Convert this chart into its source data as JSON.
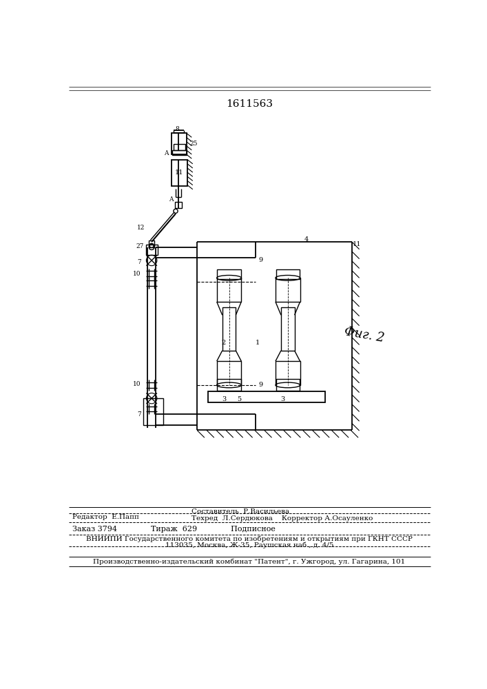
{
  "patent_number": "1611563",
  "fig_label": "Фиг. 2",
  "editor_line": "Редактор  Е.Папп",
  "compiler_line": "Составитель  Р.Васильева",
  "techred_line": "Техред  Л.Сердюкова    Корректор А.Осауленко",
  "order_line": "Заказ 3794              Тираж  629              Подписное",
  "vniip_line": "ВНИИПИ Государственного комитета по изобретениям и открытиям при ГКНТ СССР",
  "address_line": "113035, Москва, Ж-35, Раушская наб., д. 4/5",
  "factory_line": "Производственно-издательский комбинат \"Патент\", г. Ужгород, ул. Гагарина, 101",
  "bg_color": "#ffffff",
  "line_color": "#000000"
}
